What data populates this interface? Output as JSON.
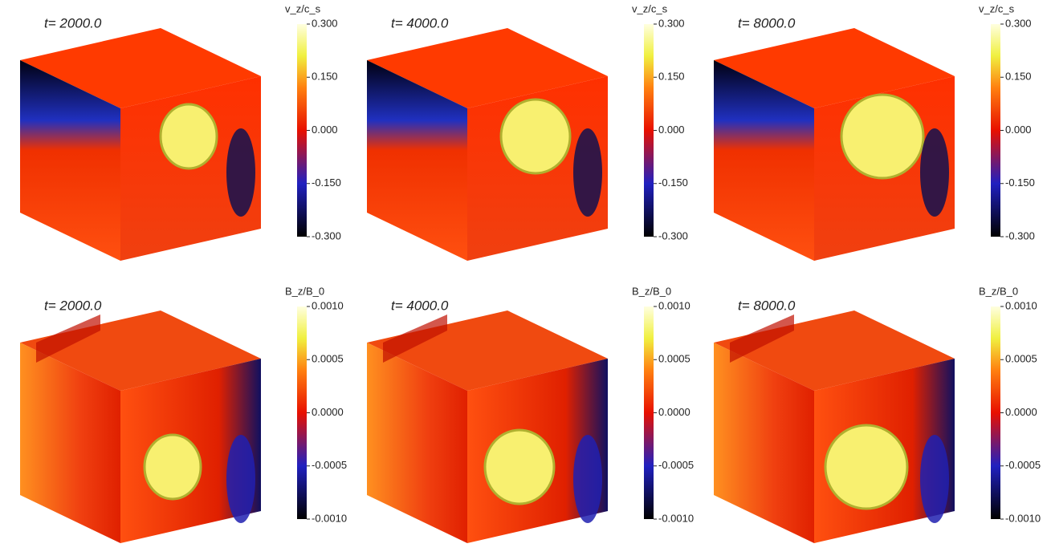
{
  "panels": [
    {
      "time_label": "t= 2000.0",
      "colorbar_title": "v_z/c_s",
      "colorbar_ticks": [
        "0.300",
        "0.150",
        "0.000",
        "-0.150",
        "-0.300"
      ]
    },
    {
      "time_label": "t= 4000.0",
      "colorbar_title": "v_z/c_s",
      "colorbar_ticks": [
        "0.300",
        "0.150",
        "0.000",
        "-0.150",
        "-0.300"
      ]
    },
    {
      "time_label": "t= 8000.0",
      "colorbar_title": "v_z/c_s",
      "colorbar_ticks": [
        "0.300",
        "0.150",
        "0.000",
        "-0.150",
        "-0.300"
      ]
    },
    {
      "time_label": "t= 2000.0",
      "colorbar_title": "B_z/B_0",
      "colorbar_ticks": [
        "0.0010",
        "0.0005",
        "0.0000",
        "-0.0005",
        "-0.0010"
      ]
    },
    {
      "time_label": "t= 4000.0",
      "colorbar_title": "B_z/B_0",
      "colorbar_ticks": [
        "0.0010",
        "0.0005",
        "0.0000",
        "-0.0005",
        "-0.0010"
      ]
    },
    {
      "time_label": "t= 8000.0",
      "colorbar_title": "B_z/B_0",
      "colorbar_ticks": [
        "0.0010",
        "0.0005",
        "0.0000",
        "-0.0005",
        "-0.0010"
      ]
    }
  ]
}
